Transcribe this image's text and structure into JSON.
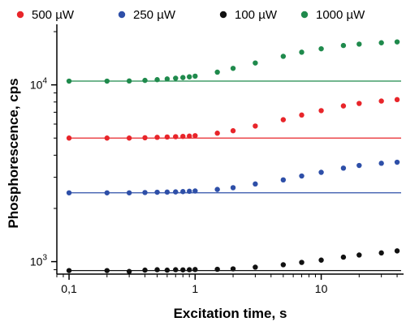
{
  "chart_data": {
    "type": "scatter",
    "xlabel": "Excitation time, s",
    "ylabel": "Phosphorescence, cps",
    "x_scale": "log",
    "y_scale": "log",
    "xlim": [
      0.08,
      45
    ],
    "ylim": [
      850,
      22000
    ],
    "x_ticks": [
      {
        "value": 0.1,
        "label": "0,1"
      },
      {
        "value": 1,
        "label": "1"
      },
      {
        "value": 10,
        "label": "10"
      }
    ],
    "y_ticks": [
      {
        "value": 1000,
        "base": "10",
        "exp": "3"
      },
      {
        "value": 10000,
        "base": "10",
        "exp": "4"
      }
    ],
    "grid": false,
    "legend_position": "top",
    "series": [
      {
        "name": "500 µW",
        "color": "#e8252a",
        "baseline": 5000,
        "points": [
          [
            0.1,
            5000
          ],
          [
            0.2,
            5000
          ],
          [
            0.3,
            5000
          ],
          [
            0.4,
            5020
          ],
          [
            0.5,
            5050
          ],
          [
            0.6,
            5070
          ],
          [
            0.7,
            5090
          ],
          [
            0.8,
            5110
          ],
          [
            0.9,
            5130
          ],
          [
            1.0,
            5160
          ],
          [
            1.5,
            5330
          ],
          [
            2,
            5500
          ],
          [
            3,
            5850
          ],
          [
            5,
            6350
          ],
          [
            7,
            6750
          ],
          [
            10,
            7150
          ],
          [
            15,
            7600
          ],
          [
            20,
            7850
          ],
          [
            30,
            8100
          ],
          [
            40,
            8250
          ]
        ]
      },
      {
        "name": "250 µW",
        "color": "#2e4fa8",
        "baseline": 2450,
        "points": [
          [
            0.1,
            2450
          ],
          [
            0.2,
            2450
          ],
          [
            0.3,
            2450
          ],
          [
            0.4,
            2460
          ],
          [
            0.5,
            2470
          ],
          [
            0.6,
            2475
          ],
          [
            0.7,
            2480
          ],
          [
            0.8,
            2490
          ],
          [
            0.9,
            2500
          ],
          [
            1.0,
            2510
          ],
          [
            1.5,
            2560
          ],
          [
            2,
            2620
          ],
          [
            3,
            2750
          ],
          [
            5,
            2900
          ],
          [
            7,
            3050
          ],
          [
            10,
            3200
          ],
          [
            15,
            3380
          ],
          [
            20,
            3500
          ],
          [
            30,
            3600
          ],
          [
            40,
            3650
          ]
        ]
      },
      {
        "name": "100 µW",
        "color": "#111111",
        "baseline": 890,
        "points": [
          [
            0.1,
            890
          ],
          [
            0.2,
            890
          ],
          [
            0.3,
            880
          ],
          [
            0.4,
            895
          ],
          [
            0.5,
            900
          ],
          [
            0.6,
            895
          ],
          [
            0.7,
            900
          ],
          [
            0.8,
            898
          ],
          [
            0.9,
            900
          ],
          [
            1.0,
            902
          ],
          [
            1.5,
            905
          ],
          [
            2,
            910
          ],
          [
            3,
            930
          ],
          [
            5,
            960
          ],
          [
            7,
            990
          ],
          [
            10,
            1020
          ],
          [
            15,
            1060
          ],
          [
            20,
            1090
          ],
          [
            30,
            1120
          ],
          [
            40,
            1150
          ]
        ]
      },
      {
        "name": "1000 µW",
        "color": "#1f8a4c",
        "baseline": 10500,
        "points": [
          [
            0.1,
            10500
          ],
          [
            0.2,
            10500
          ],
          [
            0.3,
            10520
          ],
          [
            0.4,
            10600
          ],
          [
            0.5,
            10700
          ],
          [
            0.6,
            10800
          ],
          [
            0.7,
            10900
          ],
          [
            0.8,
            11000
          ],
          [
            0.9,
            11100
          ],
          [
            1.0,
            11200
          ],
          [
            1.5,
            11800
          ],
          [
            2,
            12400
          ],
          [
            3,
            13300
          ],
          [
            5,
            14500
          ],
          [
            7,
            15300
          ],
          [
            10,
            16000
          ],
          [
            15,
            16700
          ],
          [
            20,
            17000
          ],
          [
            30,
            17300
          ],
          [
            40,
            17500
          ]
        ]
      }
    ]
  }
}
